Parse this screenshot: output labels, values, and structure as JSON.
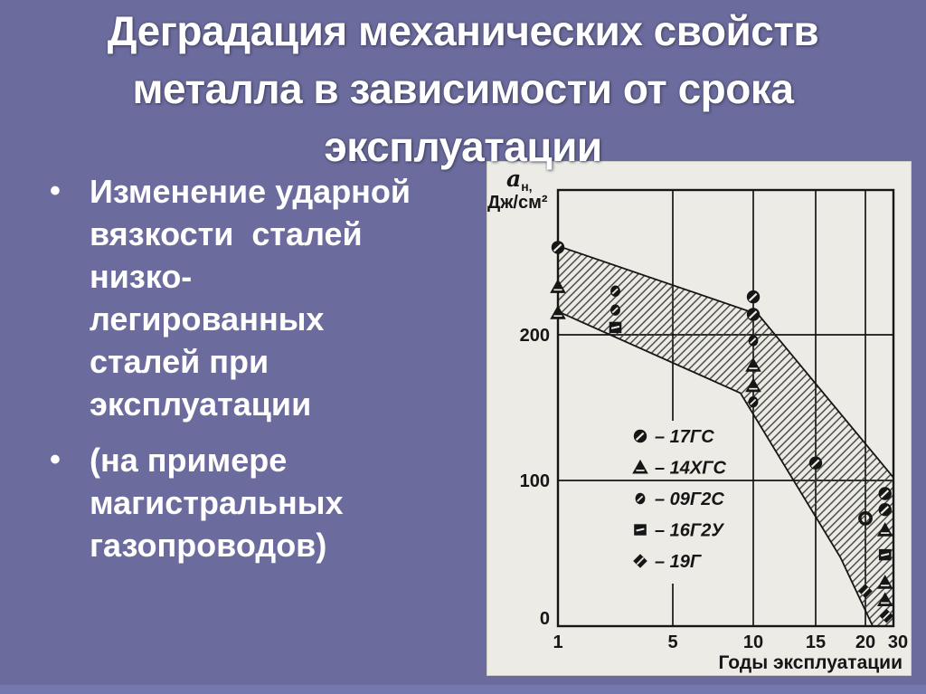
{
  "slide": {
    "title": "Деградация механических свойств\nметалла в зависимости от срока\nэксплуатации",
    "bullet_marker": "•",
    "bullets": [
      "Изменение ударной\nвязкости  сталей\nнизко-\nлегированных\nсталей при\nэксплуатации",
      "(на примере\nмагистральных\nгазопроводов)"
    ]
  },
  "colors": {
    "background": "#6B6C9D",
    "footer_strip": "#7478AE",
    "panel": "#ECEBE5",
    "ink": "#161616",
    "title_text": "#FFFFFF"
  },
  "chart_data": {
    "type": "scatter",
    "xlabel": "Годы эксплуатации",
    "ylabel": "aн, Дж/см²",
    "ylabel_parts": {
      "main": "a",
      "sub": "н,",
      "line2": "Дж/см²"
    },
    "x_ticks": [
      1,
      5,
      10,
      15,
      20,
      30
    ],
    "y_ticks": [
      0,
      100,
      200
    ],
    "ylim": [
      0,
      300
    ],
    "x_scale_note": "compressed non-linear year axis (1,5,10,15,20,30)",
    "grid": true,
    "legend_position": "inside plot, center-left",
    "legend_dash": "–",
    "series": [
      {
        "name": "17ГС",
        "marker": "circle-large",
        "points": [
          [
            1,
            260
          ],
          [
            10,
            226
          ],
          [
            10,
            214
          ],
          [
            15,
            112
          ],
          [
            27,
            91
          ],
          [
            27,
            80
          ]
        ],
        "ring_points": [
          [
            20,
            74
          ]
        ]
      },
      {
        "name": "14ХГС",
        "marker": "triangle",
        "points": [
          [
            1,
            233
          ],
          [
            1,
            215
          ],
          [
            10,
            179
          ],
          [
            10,
            165
          ],
          [
            27,
            66
          ],
          [
            27,
            30
          ],
          [
            27,
            18
          ]
        ]
      },
      {
        "name": "09Г2С",
        "marker": "circle-small",
        "points": [
          [
            3,
            230
          ],
          [
            3,
            217
          ],
          [
            10,
            196
          ],
          [
            10,
            154
          ]
        ]
      },
      {
        "name": "16Г2У",
        "marker": "square",
        "points": [
          [
            3,
            205
          ],
          [
            27,
            49
          ]
        ]
      },
      {
        "name": "19Г",
        "marker": "diamond",
        "points": [
          [
            20,
            24
          ],
          [
            27.5,
            7
          ]
        ]
      }
    ],
    "band_polygon": [
      [
        1,
        261
      ],
      [
        10.4,
        214
      ],
      [
        30,
        102
      ],
      [
        30,
        0
      ],
      [
        22.6,
        0
      ],
      [
        17.5,
        47
      ],
      [
        9.2,
        160
      ],
      [
        1,
        216
      ]
    ]
  }
}
